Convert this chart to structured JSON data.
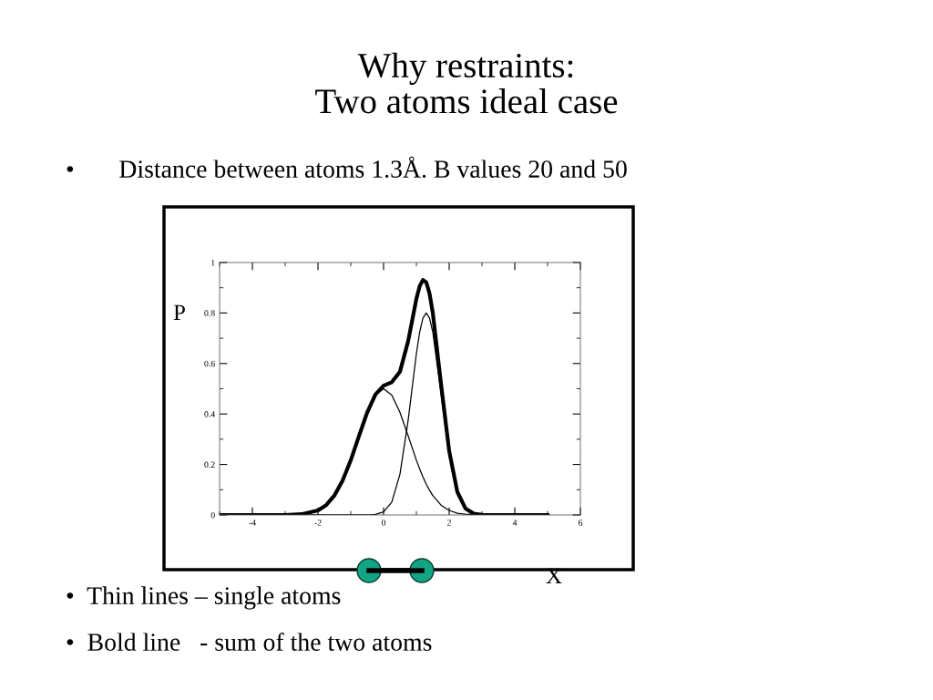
{
  "chart_data": {
    "type": "line",
    "title": "Why restraints:\nTwo atoms ideal case",
    "xlabel": "X",
    "ylabel": "P",
    "annotations": [
      "•       Distance between atoms 1.3Å. B values 20 and 50",
      "•  Thin lines – single atoms",
      "•  Bold line   - sum of the two atoms"
    ],
    "x": [
      -5,
      -4,
      -3,
      -2.5,
      -2,
      -1.75,
      -1.5,
      -1.25,
      -1,
      -0.75,
      -0.5,
      -0.25,
      0,
      0.25,
      0.5,
      0.75,
      1,
      1.1,
      1.2,
      1.3,
      1.4,
      1.5,
      1.75,
      2,
      2.25,
      2.5,
      2.75,
      3,
      3.5,
      4,
      5
    ],
    "series": [
      {
        "color": "#000000",
        "values": [
          0,
          0,
          0,
          0.003,
          0.018,
          0.039,
          0.077,
          0.136,
          0.217,
          0.313,
          0.406,
          0.475,
          0.5,
          0.475,
          0.406,
          0.313,
          0.217,
          0.182,
          0.151,
          0.122,
          0.098,
          0.077,
          0.039,
          0.018,
          0.007,
          0.003,
          0.001,
          0,
          0,
          0,
          0
        ]
      },
      {
        "color": "#000000",
        "values": [
          0,
          0,
          0,
          0,
          0,
          0,
          0,
          0,
          0,
          0,
          0,
          0.002,
          0.012,
          0.051,
          0.162,
          0.376,
          0.639,
          0.724,
          0.78,
          0.8,
          0.78,
          0.724,
          0.482,
          0.235,
          0.084,
          0.022,
          0.004,
          0.001,
          0,
          0,
          0
        ]
      },
      {
        "color": "#000000",
        "values": [
          0,
          0,
          0,
          0.003,
          0.018,
          0.039,
          0.077,
          0.136,
          0.217,
          0.313,
          0.406,
          0.477,
          0.512,
          0.526,
          0.568,
          0.689,
          0.856,
          0.906,
          0.931,
          0.922,
          0.878,
          0.801,
          0.521,
          0.253,
          0.091,
          0.025,
          0.005,
          0.001,
          0,
          0,
          0
        ]
      }
    ],
    "xlim": [
      -5,
      6
    ],
    "ylim": [
      0,
      1
    ],
    "xticks": [
      -4,
      -2,
      0,
      2,
      4,
      6
    ],
    "yticks": [
      0,
      0.2,
      0.4,
      0.6,
      0.8,
      1
    ],
    "grid": false,
    "legend": false,
    "marker": "none",
    "line_style": "solid"
  }
}
